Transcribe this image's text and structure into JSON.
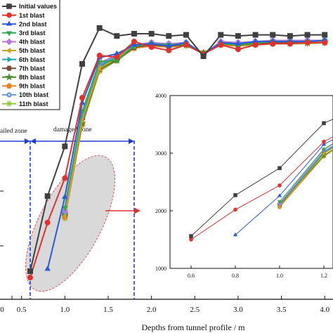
{
  "chart_data": {
    "type": "line",
    "xlabel": "Depths from tunnel profile / m",
    "xlim": [
      0.0,
      4.0
    ],
    "x_ticks": [
      "0.5",
      "1.0",
      "1.5",
      "2.0",
      "2.5",
      "3.0",
      "3.5",
      "4.0"
    ],
    "zone_labels": [
      "ailed zone",
      "damaged zone"
    ],
    "zone_boundaries_x": [
      0.6,
      1.8
    ],
    "series": [
      {
        "name": "Initial values",
        "color": "#404040",
        "marker": "square",
        "x": [
          0.6,
          0.8,
          1.0,
          1.2,
          1.4,
          1.6,
          1.8,
          2.0,
          2.2,
          2.4,
          2.6,
          2.8,
          3.0,
          3.2,
          3.4,
          3.6,
          3.8,
          4.0
        ],
        "y": [
          1560,
          2270,
          2740,
          3520,
          3860,
          5320,
          5340,
          5340,
          5320,
          5330,
          4960,
          5330,
          5320,
          5330,
          5330,
          5320,
          5330,
          5330
        ]
      },
      {
        "name": "1st blast",
        "color": "#e0312f",
        "marker": "circle",
        "x": [
          0.6,
          0.8,
          1.0,
          1.2,
          1.4,
          1.6,
          1.8,
          2.0,
          2.2,
          2.4,
          2.6,
          2.8,
          3.0,
          3.2,
          3.4,
          3.6,
          3.8,
          4.0
        ],
        "y": [
          1500,
          2020,
          2440,
          3200,
          3600,
          5130,
          5270,
          5220,
          5190,
          5240,
          4890,
          5240,
          5200,
          5240,
          5250,
          5250,
          5260,
          5260
        ]
      },
      {
        "name": "2nd blast",
        "color": "#2a5bd7",
        "marker": "triangle-up",
        "x": [
          0.8,
          1.0,
          1.2,
          1.4,
          1.6,
          1.8,
          2.0,
          2.2,
          2.4,
          2.6,
          2.8,
          3.0,
          3.2,
          3.4,
          3.6,
          3.8,
          4.0
        ],
        "y": [
          1580,
          2260,
          3150,
          3580,
          5160,
          5240,
          5250,
          5230,
          5260,
          4900,
          5260,
          5250,
          5270,
          5270,
          5270,
          5270,
          5280
        ]
      },
      {
        "name": "3rd blast",
        "color": "#2fa84f",
        "marker": "triangle-down",
        "x": [
          1.0,
          1.2,
          1.4,
          1.6,
          1.8,
          2.0,
          2.2,
          2.4,
          2.6,
          2.8,
          3.0,
          3.2,
          3.4,
          3.6,
          3.8,
          4.0
        ],
        "y": [
          2160,
          3070,
          3540,
          5090,
          5230,
          5250,
          5240,
          5250,
          4860,
          5250,
          5240,
          5260,
          5270,
          5270,
          5270,
          5280
        ]
      },
      {
        "name": "4th blast",
        "color": "#b57bd8",
        "marker": "diamond",
        "x": [
          1.0,
          1.2,
          1.4,
          1.6,
          1.8,
          2.0,
          2.2,
          2.4,
          2.6,
          2.8,
          3.0,
          3.2,
          3.4,
          3.6,
          3.8,
          4.0
        ],
        "y": [
          2130,
          3060,
          3530,
          5150,
          5240,
          5260,
          5250,
          5260,
          4900,
          5270,
          5260,
          5270,
          5280,
          5280,
          5280,
          5280
        ]
      },
      {
        "name": "5th blast",
        "color": "#c9a227",
        "marker": "triangle-left",
        "x": [
          1.0,
          1.2,
          1.4,
          1.6,
          1.8,
          2.0,
          2.2,
          2.4,
          2.6,
          2.8,
          3.0,
          3.2,
          3.4,
          3.6,
          3.8,
          4.0
        ],
        "y": [
          2080,
          2990,
          3480,
          5120,
          5230,
          5250,
          5240,
          5250,
          4880,
          5260,
          5250,
          5260,
          5270,
          5270,
          5270,
          5270
        ]
      },
      {
        "name": "6th blast",
        "color": "#17a9b0",
        "marker": "triangle-right",
        "x": [
          1.0,
          1.2,
          1.4,
          1.6,
          1.8,
          2.0,
          2.2,
          2.4,
          2.6,
          2.8,
          3.0,
          3.2,
          3.4,
          3.6,
          3.8,
          4.0
        ],
        "y": [
          2110,
          3020,
          3500,
          5130,
          5230,
          5250,
          5240,
          5260,
          4880,
          5260,
          5250,
          5270,
          5270,
          5270,
          5270,
          5280
        ]
      },
      {
        "name": "7th blast",
        "color": "#7a4a3a",
        "marker": "hexagon",
        "x": [
          1.0,
          1.2,
          1.4,
          1.6,
          1.8,
          2.0,
          2.2,
          2.4,
          2.6,
          2.8,
          3.0,
          3.2,
          3.4,
          3.6,
          3.8,
          4.0
        ],
        "y": [
          2090,
          3000,
          3490,
          5110,
          5220,
          5240,
          5230,
          5250,
          4870,
          5250,
          5240,
          5260,
          5260,
          5260,
          5270,
          5270
        ]
      },
      {
        "name": "8th blast",
        "color": "#4a8a2a",
        "marker": "star",
        "x": [
          1.0,
          1.2,
          1.4,
          1.6,
          1.8,
          2.0,
          2.2,
          2.4,
          2.6,
          2.8,
          3.0,
          3.2,
          3.4,
          3.6,
          3.8,
          4.0
        ],
        "y": [
          2100,
          2960,
          3470,
          5100,
          5220,
          5240,
          5230,
          5240,
          4860,
          5250,
          5240,
          5250,
          5260,
          5260,
          5260,
          5270
        ]
      },
      {
        "name": "9th blast",
        "color": "#e8832a",
        "marker": "pentagon",
        "x": [
          1.0,
          1.2,
          1.4,
          1.6,
          1.8,
          2.0,
          2.2,
          2.4,
          2.6,
          2.8,
          3.0,
          3.2,
          3.4,
          3.6,
          3.8,
          4.0
        ],
        "y": [
          2070,
          2950,
          3460,
          5100,
          5210,
          5230,
          5220,
          5240,
          4850,
          5240,
          5230,
          5250,
          5250,
          5260,
          5260,
          5260
        ]
      },
      {
        "name": "10th blast",
        "color": "#6f9fd8",
        "marker": "circle-dot",
        "x": [
          1.0,
          1.2,
          1.4,
          1.6,
          1.8,
          2.0,
          2.2,
          2.4,
          2.6,
          2.8,
          3.0,
          3.2,
          3.4,
          3.6,
          3.8,
          4.0
        ],
        "y": [
          2120,
          3030,
          3510,
          5140,
          5240,
          5260,
          5250,
          5260,
          4890,
          5260,
          5260,
          5270,
          5270,
          5270,
          5280,
          5280
        ]
      },
      {
        "name": "11th blast",
        "color": "#8fc93a",
        "marker": "asterisk",
        "x": [
          1.0,
          1.2,
          1.4,
          1.6,
          1.8,
          2.0,
          2.2,
          2.4,
          2.6,
          2.8,
          3.0,
          3.2,
          3.4,
          3.6,
          3.8,
          4.0
        ],
        "y": [
          2060,
          2940,
          3450,
          5090,
          5210,
          5230,
          5220,
          5230,
          4840,
          5240,
          5230,
          5240,
          5250,
          5250,
          5250,
          5260
        ]
      }
    ],
    "inset": {
      "xlim": [
        0.5,
        1.25
      ],
      "ylim": [
        1000,
        4000
      ],
      "x_ticks": [
        "0.6",
        "0.8",
        "1.0",
        "1.2"
      ],
      "y_ticks": [
        "1000",
        "2000",
        "3000",
        "4000"
      ]
    },
    "legend_placement": "top-left",
    "grid": false
  }
}
